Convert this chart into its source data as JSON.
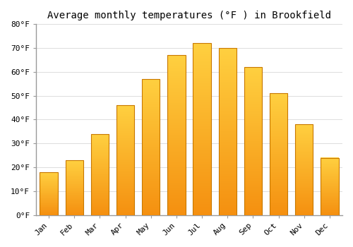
{
  "title": "Average monthly temperatures (°F ) in Brookfield",
  "months": [
    "Jan",
    "Feb",
    "Mar",
    "Apr",
    "May",
    "Jun",
    "Jul",
    "Aug",
    "Sep",
    "Oct",
    "Nov",
    "Dec"
  ],
  "values": [
    18,
    23,
    34,
    46,
    57,
    67,
    72,
    70,
    62,
    51,
    38,
    24
  ],
  "bar_color_top": "#FFD040",
  "bar_color_bottom": "#F59010",
  "bar_edge_color": "#C87800",
  "background_color": "#FFFFFF",
  "plot_bg_color": "#FFFFFF",
  "grid_color": "#DDDDDD",
  "ylim": [
    0,
    80
  ],
  "yticks": [
    0,
    10,
    20,
    30,
    40,
    50,
    60,
    70,
    80
  ],
  "ytick_labels": [
    "0°F",
    "10°F",
    "20°F",
    "30°F",
    "40°F",
    "50°F",
    "60°F",
    "70°F",
    "80°F"
  ],
  "title_fontsize": 10,
  "tick_fontsize": 8,
  "font_family": "monospace",
  "bar_width": 0.7
}
